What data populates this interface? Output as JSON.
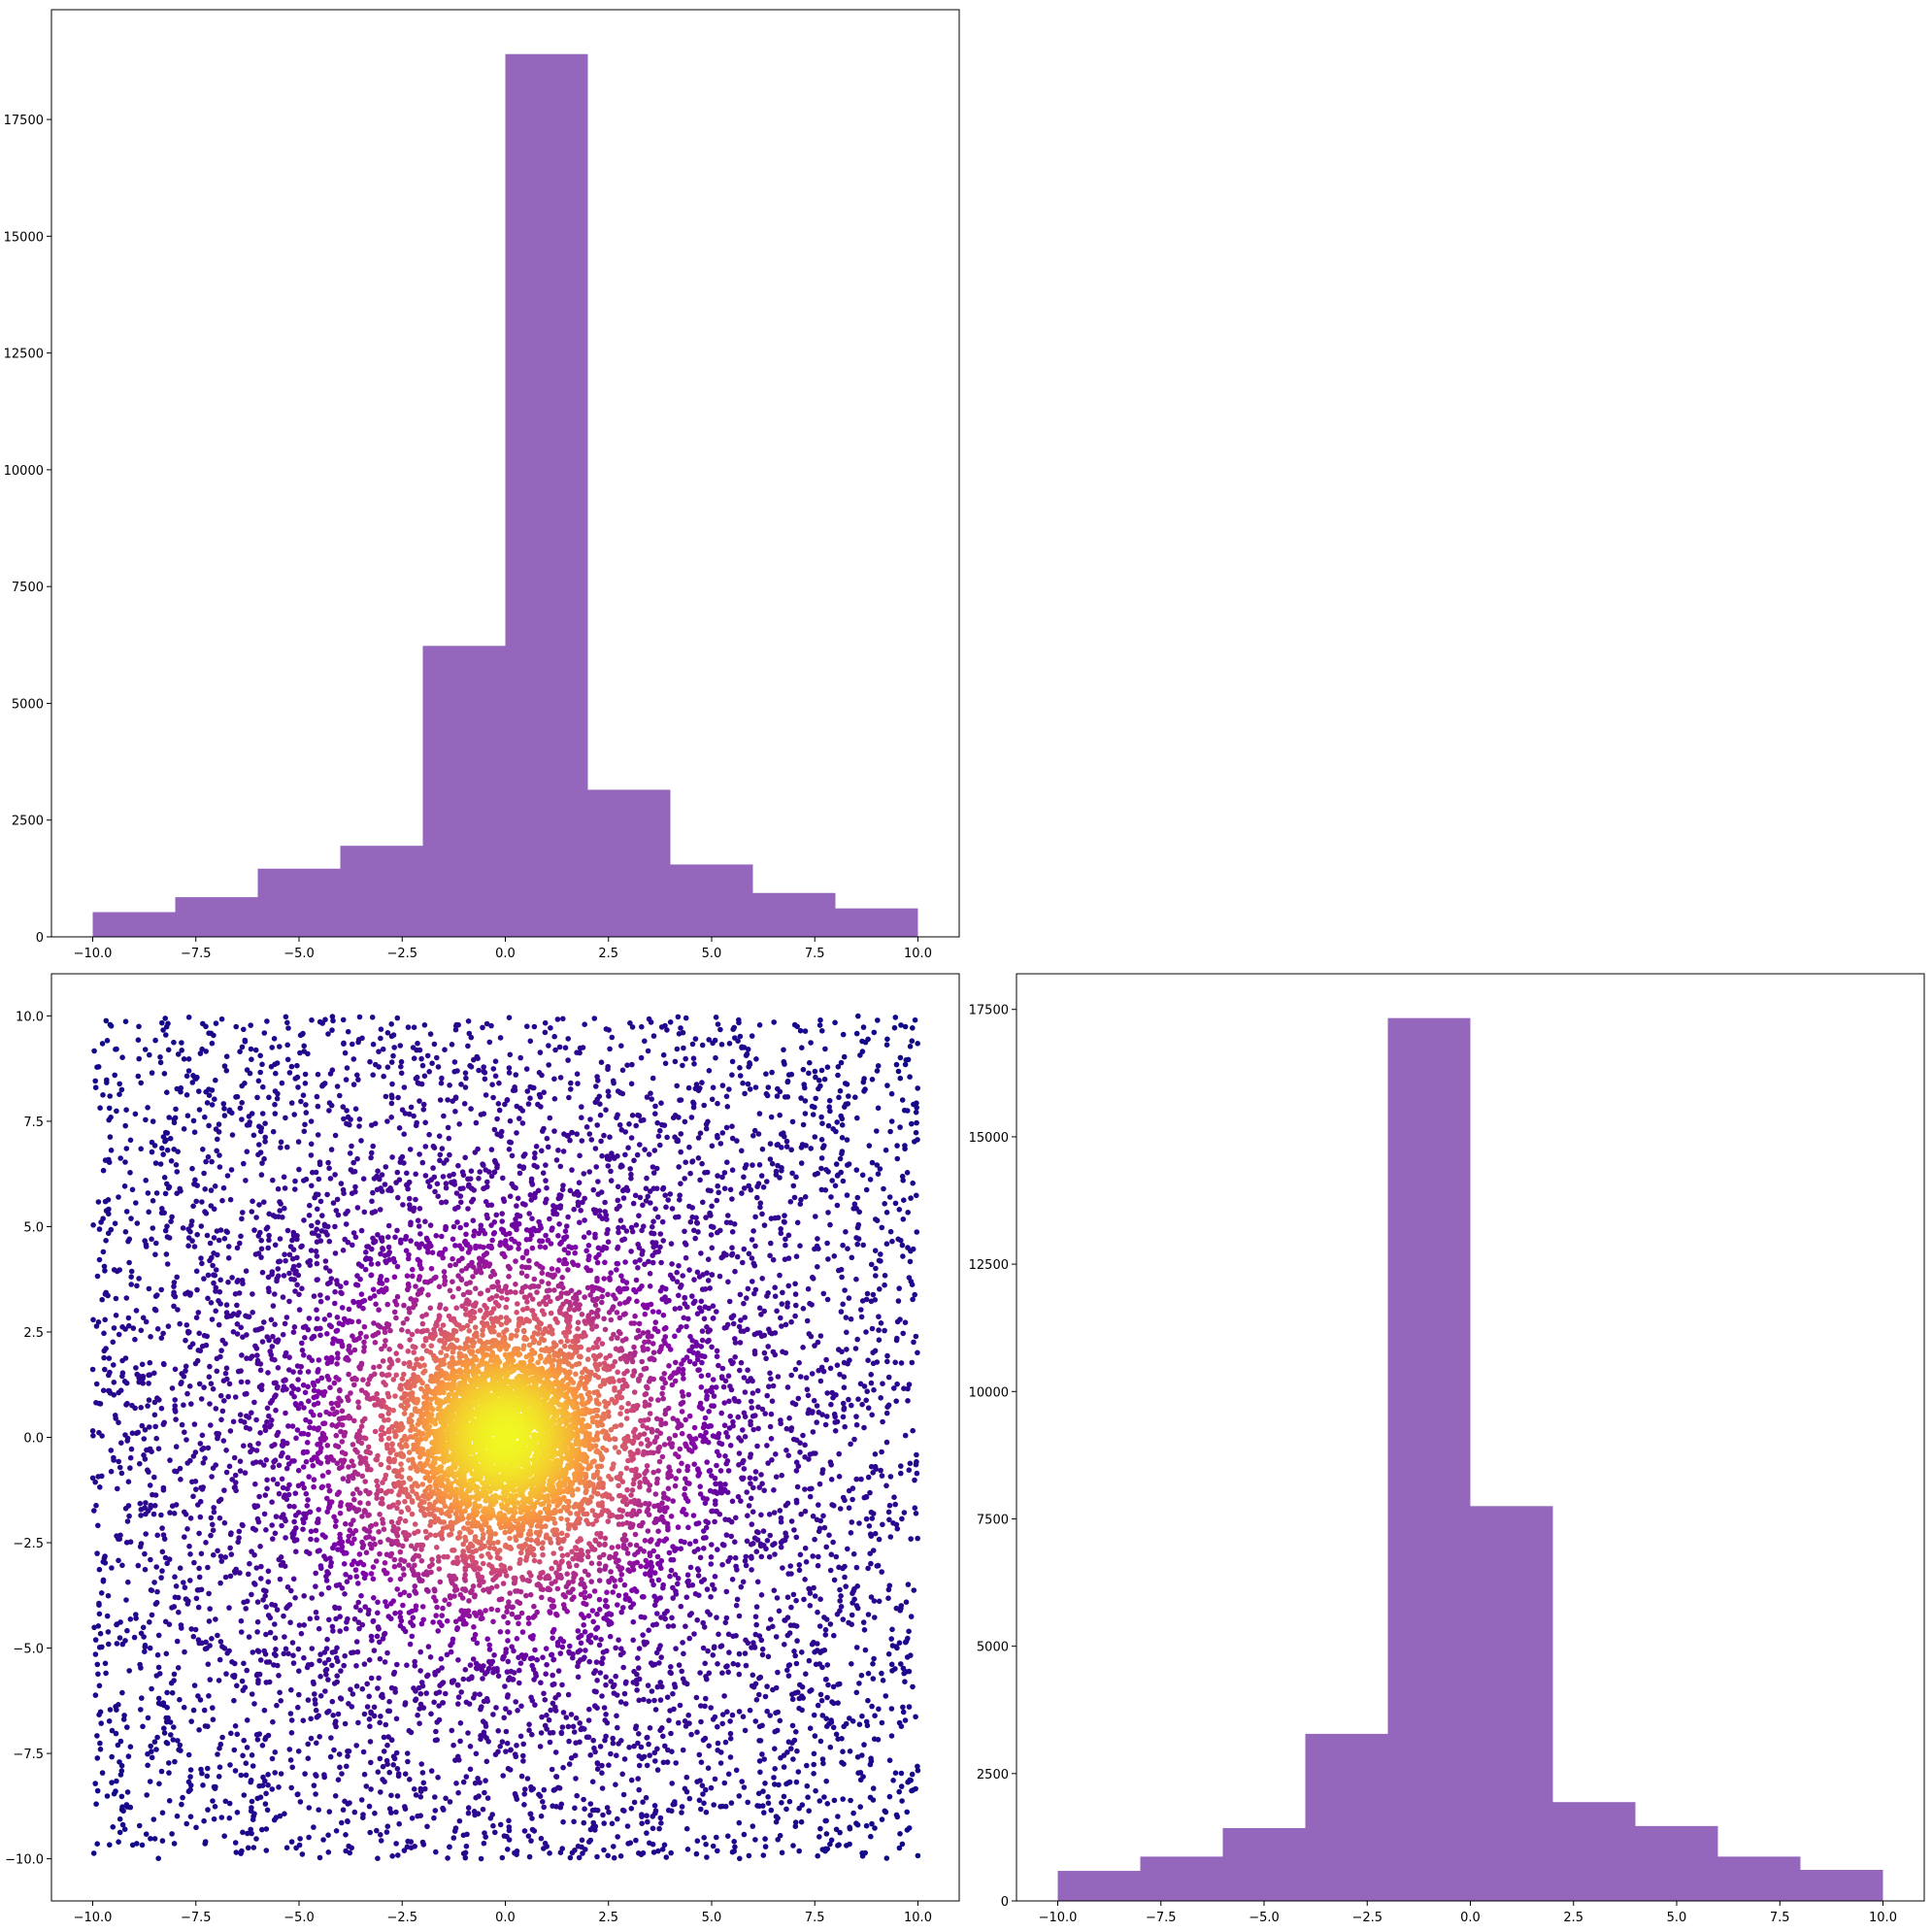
{
  "chart_data": [
    {
      "id": "top-left",
      "type": "bar",
      "title": "",
      "xlabel": "",
      "ylabel": "",
      "bin_edges": [
        -10,
        -8,
        -6,
        -4,
        -2,
        0,
        2,
        4,
        6,
        8,
        10
      ],
      "values": [
        530,
        850,
        1460,
        1950,
        6230,
        18900,
        3150,
        1550,
        940,
        610
      ],
      "xlim": [
        -11,
        11
      ],
      "ylim": [
        0,
        19850
      ],
      "xticks": [
        -10,
        -7.5,
        -5,
        -2.5,
        0,
        2.5,
        5,
        7.5,
        10
      ],
      "xtick_labels": [
        "−10.0",
        "−7.5",
        "−5.0",
        "−2.5",
        "0.0",
        "2.5",
        "5.0",
        "7.5",
        "10.0"
      ],
      "yticks": [
        0,
        2500,
        5000,
        7500,
        10000,
        12500,
        15000,
        17500
      ],
      "ytick_labels": [
        "0",
        "2500",
        "5000",
        "7500",
        "10000",
        "12500",
        "15000",
        "17500"
      ],
      "color": "#9467bd",
      "grid": false,
      "legend": "none"
    },
    {
      "id": "bottom-left",
      "type": "scatter",
      "title": "",
      "xlabel": "",
      "ylabel": "",
      "x_range": [
        -10,
        10
      ],
      "y_range": [
        -10,
        10
      ],
      "density_peak": [
        0,
        0
      ],
      "colormap": "plasma",
      "xlim": [
        -11,
        11
      ],
      "ylim": [
        -11,
        11
      ],
      "xticks": [
        -10,
        -7.5,
        -5,
        -2.5,
        0,
        2.5,
        5,
        7.5,
        10
      ],
      "xtick_labels": [
        "−10.0",
        "−7.5",
        "−5.0",
        "−2.5",
        "0.0",
        "2.5",
        "5.0",
        "7.5",
        "10.0"
      ],
      "yticks": [
        -10,
        -7.5,
        -5,
        -2.5,
        0,
        2.5,
        5,
        7.5,
        10
      ],
      "ytick_labels": [
        "−10.0",
        "−7.5",
        "−5.0",
        "−2.5",
        "0.0",
        "2.5",
        "5.0",
        "7.5",
        "10.0"
      ],
      "grid": false,
      "legend": "none"
    },
    {
      "id": "bottom-right",
      "type": "bar",
      "title": "",
      "xlabel": "",
      "ylabel": "",
      "bin_edges": [
        -10,
        -8,
        -6,
        -4,
        -2,
        0,
        2,
        4,
        6,
        8,
        10
      ],
      "values": [
        590,
        870,
        1430,
        3280,
        17330,
        7750,
        1940,
        1470,
        870,
        610
      ],
      "xlim": [
        -11,
        11
      ],
      "ylim": [
        0,
        18200
      ],
      "xticks": [
        -10,
        -7.5,
        -5,
        -2.5,
        0,
        2.5,
        5,
        7.5,
        10
      ],
      "xtick_labels": [
        "−10.0",
        "−7.5",
        "−5.0",
        "−2.5",
        "0.0",
        "2.5",
        "5.0",
        "7.5",
        "10.0"
      ],
      "yticks": [
        0,
        2500,
        5000,
        7500,
        10000,
        12500,
        15000,
        17500
      ],
      "ytick_labels": [
        "0",
        "2500",
        "5000",
        "7500",
        "10000",
        "12500",
        "15000",
        "17500"
      ],
      "color": "#9467bd",
      "grid": false,
      "legend": "none"
    }
  ]
}
